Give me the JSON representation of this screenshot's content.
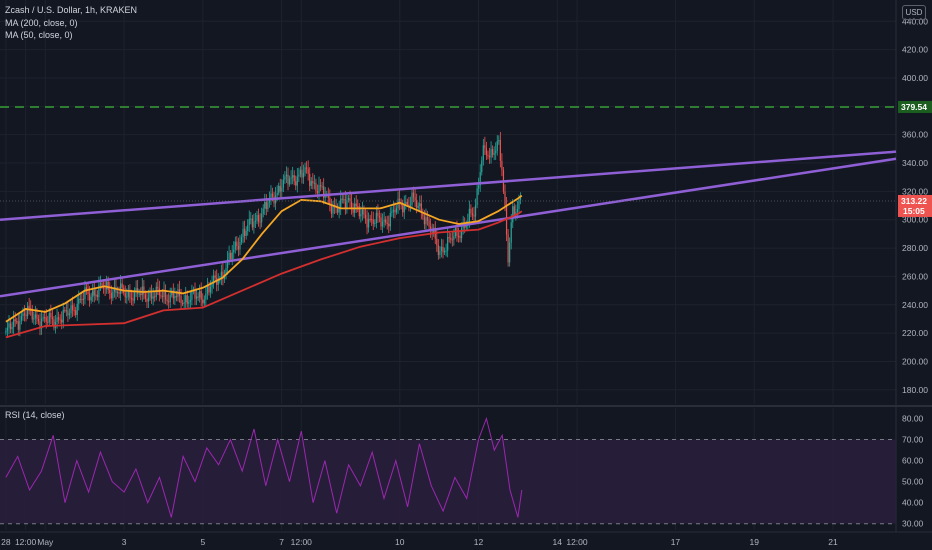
{
  "header": {
    "symbol_title": "Zcash / U.S. Dollar, 1h, KRAKEN",
    "indicator_ma200": "MA (200, close, 0)",
    "indicator_ma50": "MA (50, close, 0)",
    "rsi_title": "RSI (14, close)",
    "currency": "USD"
  },
  "colors": {
    "background": "#131722",
    "grid": "#1e222d",
    "candle_up": "#26a69a",
    "candle_down": "#ef5350",
    "ma200": "#d32f2f",
    "ma50": "#f5a623",
    "trendline": "#8f5fd6",
    "resistance": "#2e7d32",
    "rsi_line": "#9c27b0",
    "rsi_band": "#2a1f3d"
  },
  "chart_data": [
    {
      "type": "candlestick",
      "title": "Zcash / U.S. Dollar, 1h, KRAKEN",
      "y_ticks": [
        180,
        200,
        220,
        240,
        260,
        280,
        300,
        320,
        340,
        360,
        380,
        400,
        420,
        440
      ],
      "ylim": [
        170,
        455
      ],
      "x_tick_labels": [
        "28",
        "12:00",
        "May",
        "3",
        "5",
        "7",
        "12:00",
        "10",
        "12",
        "14",
        "12:00",
        "17",
        "19",
        "21"
      ],
      "x_tick_days": [
        0,
        0.5,
        1,
        3,
        5,
        7,
        7.5,
        10,
        12,
        14,
        14.5,
        17,
        19,
        21
      ],
      "xlim": [
        -0.15,
        22.6
      ],
      "last_data_day": 13.1,
      "close_series": {
        "days": [
          0,
          0.5,
          1,
          1.5,
          2,
          2.5,
          3,
          3.5,
          4,
          4.5,
          5,
          5.5,
          6,
          6.5,
          7,
          7.3,
          7.6,
          8,
          8.4,
          8.7,
          9,
          9.3,
          9.6,
          10,
          10.3,
          10.6,
          11,
          11.3,
          11.6,
          11.9,
          12.1,
          12.3,
          12.5,
          12.6,
          12.75,
          12.85,
          13,
          13.1
        ],
        "values": [
          220,
          235,
          228,
          232,
          246,
          252,
          248,
          247,
          247,
          244,
          246,
          262,
          290,
          305,
          325,
          330,
          333,
          320,
          307,
          315,
          303,
          300,
          298,
          310,
          314,
          305,
          278,
          285,
          295,
          305,
          350,
          342,
          358,
          335,
          270,
          305,
          312,
          313
        ]
      },
      "series": [
        {
          "name": "MA (200, close, 0)",
          "days": [
            0,
            1,
            2,
            3,
            4,
            5,
            6,
            7,
            8,
            9,
            10,
            11,
            12,
            12.5,
            13,
            13.1
          ],
          "values": [
            217,
            225,
            226,
            227,
            236,
            238,
            250,
            262,
            272,
            281,
            287,
            291,
            293,
            298,
            304,
            306
          ]
        },
        {
          "name": "MA (50, close, 0)",
          "days": [
            0,
            0.5,
            1,
            1.5,
            2,
            2.5,
            3,
            3.5,
            4,
            4.5,
            5,
            5.5,
            6,
            6.5,
            7,
            7.5,
            8,
            8.5,
            9,
            9.5,
            10,
            10.5,
            11,
            11.5,
            12,
            12.5,
            13,
            13.1
          ],
          "values": [
            228,
            237,
            235,
            241,
            250,
            253,
            250,
            249,
            250,
            248,
            252,
            259,
            272,
            290,
            306,
            314,
            313,
            308,
            308,
            308,
            312,
            306,
            300,
            297,
            299,
            306,
            315,
            317
          ]
        }
      ],
      "trendlines": [
        {
          "name": "upper trendline",
          "days": [
            -0.15,
            22.6
          ],
          "values": [
            300,
            348
          ]
        },
        {
          "name": "lower trendline",
          "days": [
            -0.15,
            22.6
          ],
          "values": [
            246,
            343
          ]
        }
      ],
      "resistance_level": 379.54,
      "price_labels": {
        "resistance": "379.54",
        "last_price": "313.22",
        "countdown": "15:05"
      }
    },
    {
      "type": "line",
      "title": "RSI (14, close)",
      "y_ticks": [
        30,
        40,
        50,
        60,
        70,
        80
      ],
      "ylim": [
        27,
        85
      ],
      "bands": [
        30,
        70
      ],
      "days": [
        0,
        0.3,
        0.6,
        0.9,
        1.2,
        1.5,
        1.8,
        2.1,
        2.4,
        2.7,
        3,
        3.3,
        3.6,
        3.9,
        4.2,
        4.5,
        4.8,
        5.1,
        5.4,
        5.7,
        6,
        6.3,
        6.6,
        6.9,
        7.2,
        7.5,
        7.8,
        8.1,
        8.4,
        8.7,
        9,
        9.3,
        9.6,
        9.9,
        10.2,
        10.5,
        10.8,
        11.1,
        11.4,
        11.7,
        12,
        12.2,
        12.4,
        12.6,
        12.8,
        13,
        13.1
      ],
      "values": [
        52,
        62,
        46,
        55,
        72,
        40,
        60,
        45,
        64,
        50,
        45,
        56,
        40,
        52,
        33,
        62,
        50,
        66,
        58,
        70,
        55,
        75,
        48,
        70,
        50,
        74,
        40,
        60,
        35,
        58,
        48,
        64,
        42,
        60,
        38,
        68,
        48,
        36,
        52,
        42,
        70,
        80,
        65,
        72,
        46,
        33,
        46
      ]
    }
  ]
}
